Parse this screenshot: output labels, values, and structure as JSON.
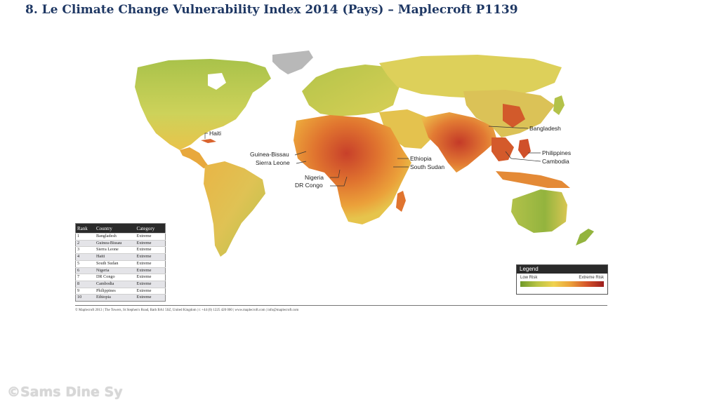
{
  "slide": {
    "title": "8. Le Climate Change Vulnerability Index 2014 (Pays) – Maplecroft P1139"
  },
  "map": {
    "subject": "Climate Change Vulnerability Index",
    "colors": {
      "low": "#6f9a2a",
      "low_mid": "#b8c444",
      "medium": "#f0d350",
      "high": "#eba13a",
      "extreme": "#c8402a",
      "no_data": "#b8b8b8"
    },
    "callouts": [
      "Haiti",
      "Guinea-Bissau",
      "Sierra Leone",
      "Nigeria",
      "DR Congo",
      "Ethiopia",
      "South Sudan",
      "Bangladesh",
      "Philippines",
      "Cambodia"
    ]
  },
  "table": {
    "headers": [
      "Rank",
      "Country",
      "Category"
    ],
    "rows": [
      [
        "1",
        "Bangladesh",
        "Extreme"
      ],
      [
        "2",
        "Guinea-Bissau",
        "Extreme"
      ],
      [
        "3",
        "Sierra Leone",
        "Extreme"
      ],
      [
        "4",
        "Haiti",
        "Extreme"
      ],
      [
        "5",
        "South Sudan",
        "Extreme"
      ],
      [
        "6",
        "Nigeria",
        "Extreme"
      ],
      [
        "7",
        "DR Congo",
        "Extreme"
      ],
      [
        "8",
        "Cambodia",
        "Extreme"
      ],
      [
        "9",
        "Philippines",
        "Extreme"
      ],
      [
        "10",
        "Ethiopia",
        "Extreme"
      ]
    ]
  },
  "legend": {
    "title": "Legend",
    "low_label": "Low Risk",
    "high_label": "Extreme Risk"
  },
  "footer": {
    "text": "© Maplecroft 2013 | The Towers, St Stephen's Road, Bath BA1 5SZ, United Kingdom | t: +44 (0) 1225 420 000 | www.maplecroft.com | info@maplecroft.com"
  },
  "watermark": "©Sams Dine Sy"
}
